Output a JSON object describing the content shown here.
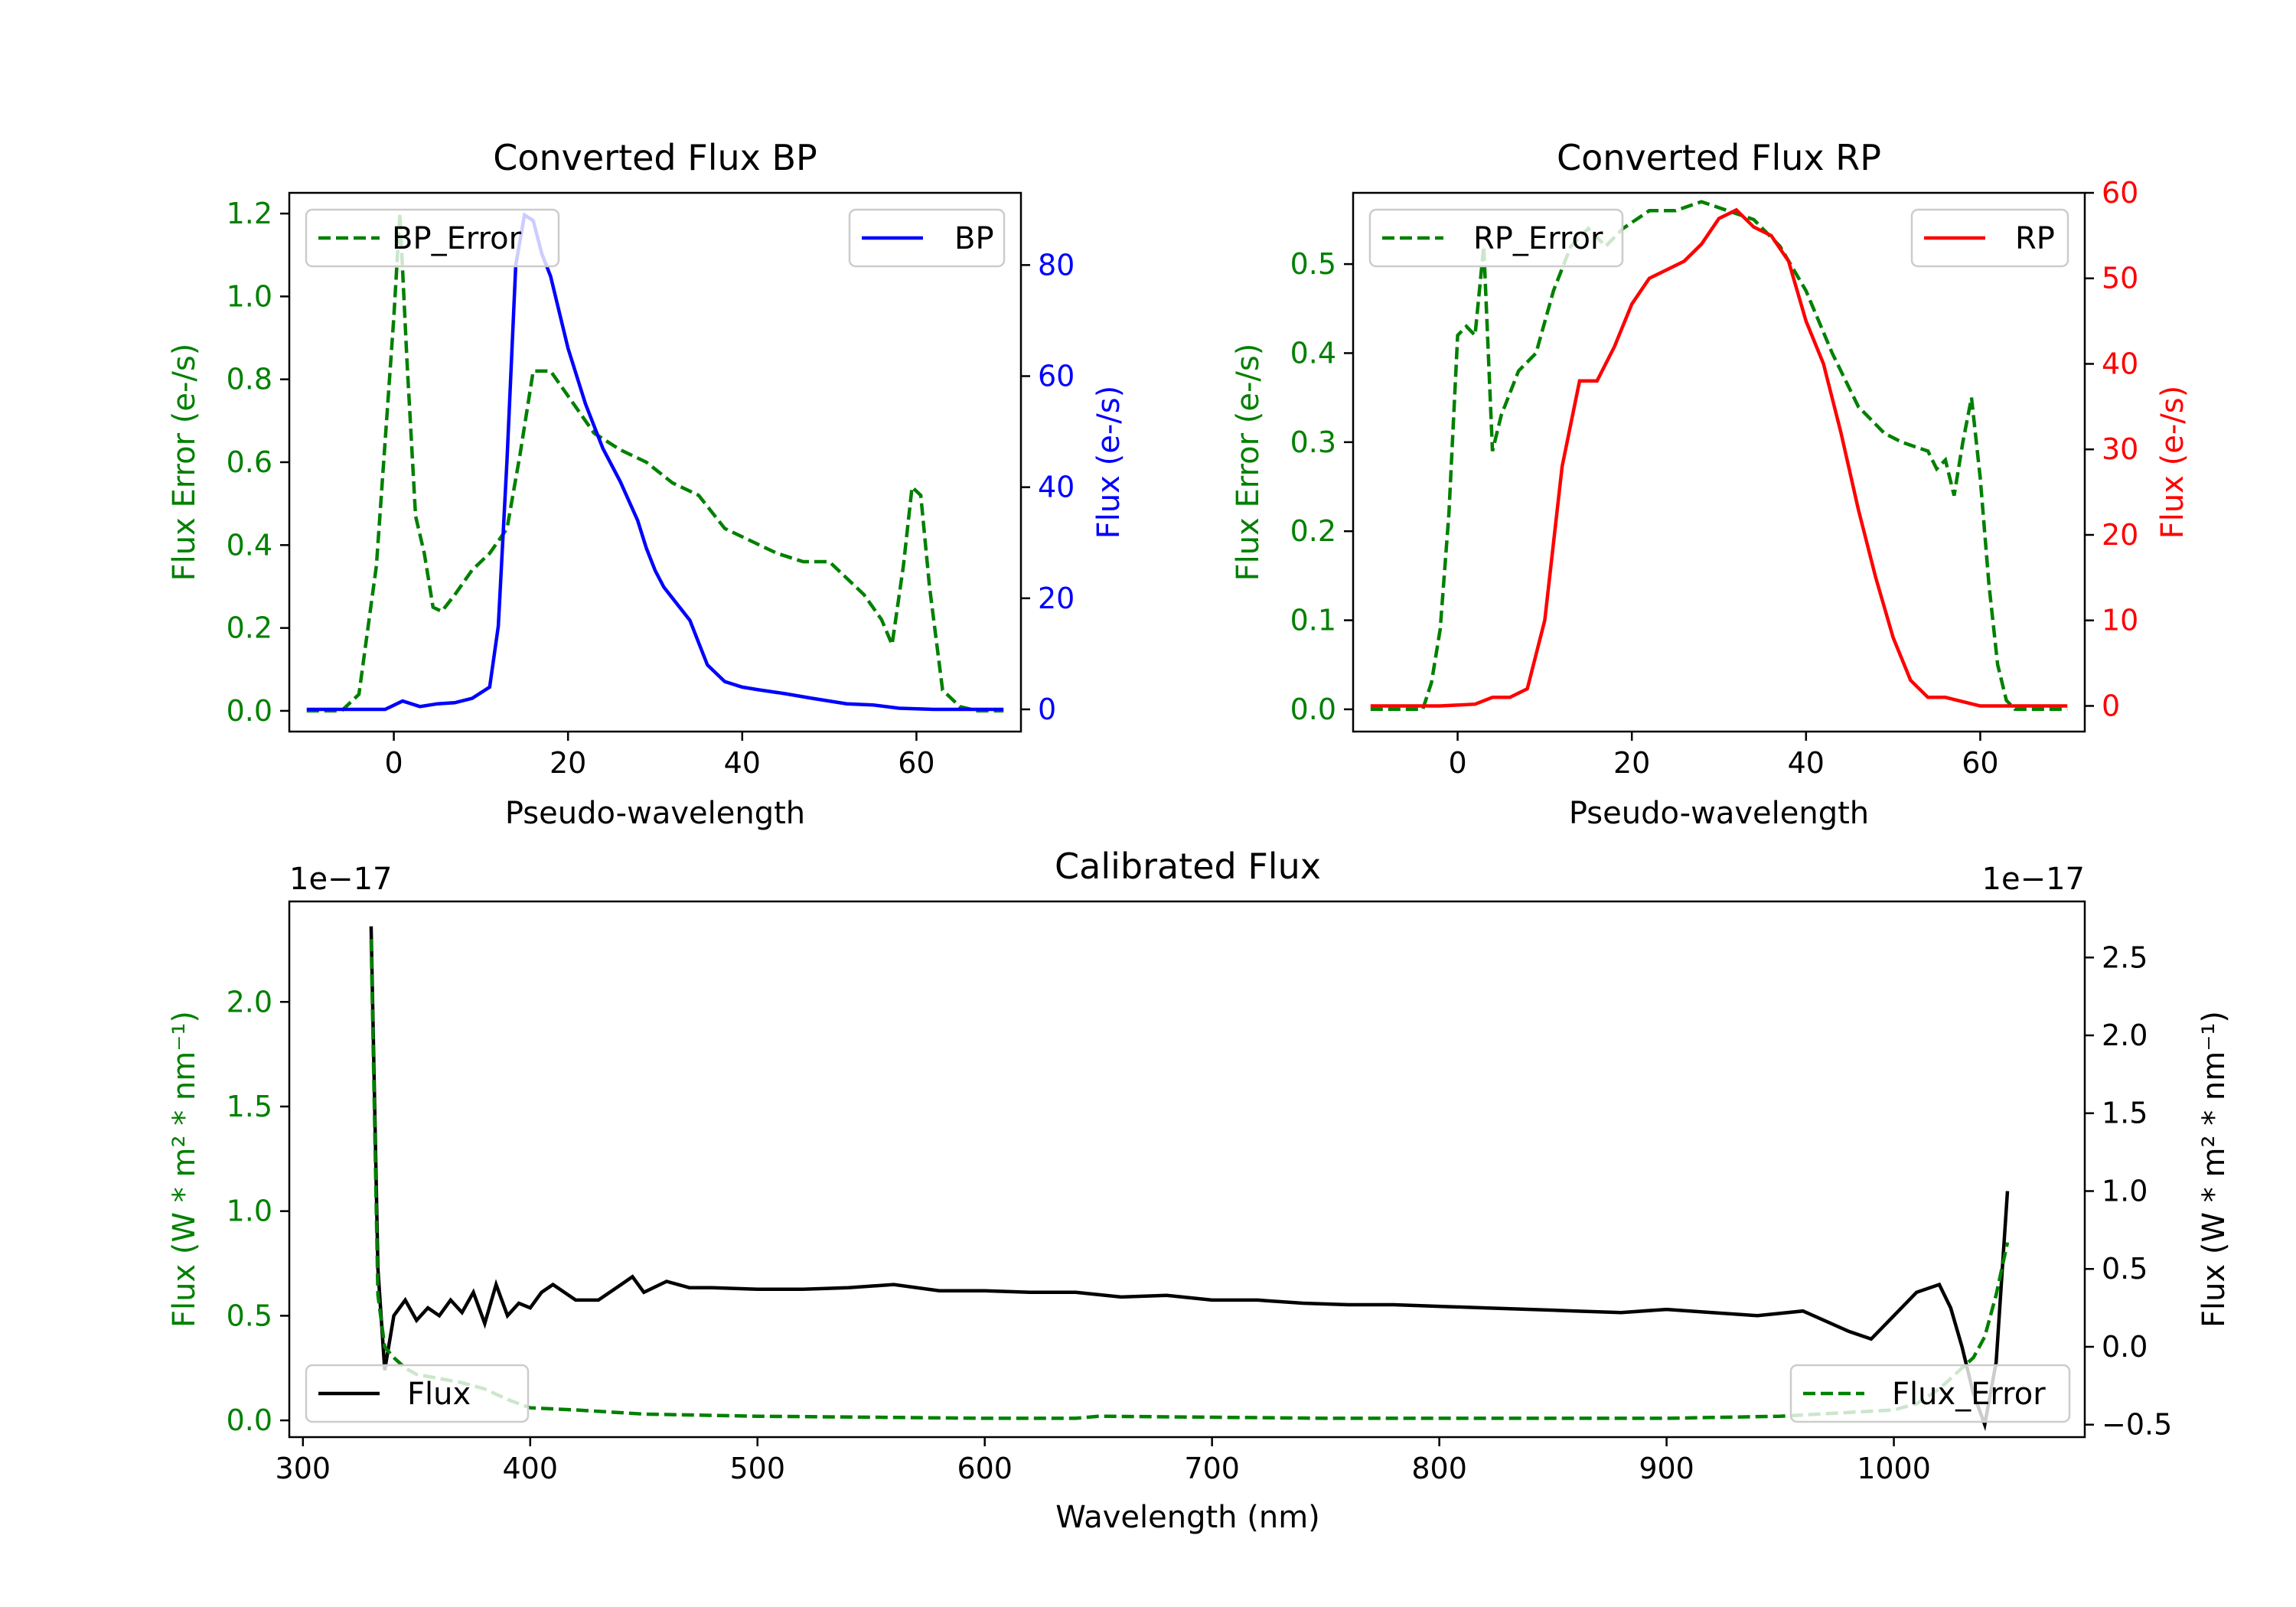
{
  "chart_data": [
    {
      "type": "line",
      "title": "Converted Flux BP",
      "xlabel": "Pseudo-wavelength",
      "ylabel_left": "Flux Error (e-/s)",
      "ylabel_right": "Flux (e-/s)",
      "xlim": [
        -12,
        72
      ],
      "ylim_left": [
        -0.05,
        1.25
      ],
      "ylim_right": [
        -4,
        93
      ],
      "xticks": [
        0,
        20,
        40,
        60
      ],
      "yticks_left": [
        0.0,
        0.2,
        0.4,
        0.6,
        0.8,
        1.0,
        1.2
      ],
      "yticks_right": [
        0,
        20,
        40,
        60,
        80
      ],
      "series": [
        {
          "name": "BP_Error",
          "axis": "left",
          "style": "dashed",
          "color": "#008000",
          "x": [
            -10,
            -6,
            -4,
            -2,
            0,
            0.7,
            1.5,
            2.5,
            3.5,
            4.5,
            5.5,
            7,
            9,
            11,
            13,
            14.5,
            16,
            18,
            20,
            23,
            26,
            29,
            32,
            35,
            38,
            41,
            44,
            47,
            50,
            52,
            54,
            56,
            57.2,
            58.5,
            59.5,
            60.5,
            61.5,
            63,
            65,
            67,
            70
          ],
          "y": [
            0.0,
            0.0,
            0.04,
            0.35,
            0.95,
            1.2,
            0.85,
            0.47,
            0.38,
            0.25,
            0.24,
            0.28,
            0.34,
            0.38,
            0.44,
            0.62,
            0.82,
            0.82,
            0.76,
            0.67,
            0.63,
            0.6,
            0.55,
            0.52,
            0.44,
            0.41,
            0.38,
            0.36,
            0.36,
            0.32,
            0.28,
            0.22,
            0.16,
            0.35,
            0.54,
            0.52,
            0.3,
            0.05,
            0.01,
            0.0,
            0.0
          ]
        },
        {
          "name": "BP",
          "axis": "right",
          "style": "solid",
          "color": "#0000ff",
          "x": [
            -10,
            -4,
            -1,
            1,
            3,
            5,
            7,
            9,
            11,
            12,
            13,
            14,
            15,
            16,
            17,
            18,
            20,
            22,
            24,
            26,
            28,
            29,
            30,
            31,
            32,
            34,
            35,
            36,
            38,
            40,
            42,
            45,
            48,
            50,
            52,
            55,
            58,
            62,
            66,
            70
          ],
          "y": [
            0,
            0,
            0,
            1.5,
            0.5,
            1,
            1.2,
            2,
            4,
            15,
            45,
            80,
            89,
            88,
            82,
            78,
            65,
            55,
            47,
            41,
            34,
            29,
            25,
            22,
            20,
            16,
            12,
            8,
            5,
            4,
            3.5,
            2.8,
            2,
            1.5,
            1,
            0.8,
            0.2,
            0,
            0,
            0
          ]
        }
      ],
      "legend": [
        {
          "label": "BP_Error",
          "placement": "upper-left"
        },
        {
          "label": "BP",
          "placement": "upper-right"
        }
      ]
    },
    {
      "type": "line",
      "title": "Converted Flux RP",
      "xlabel": "Pseudo-wavelength",
      "ylabel_left": "Flux Error (e-/s)",
      "ylabel_right": "Flux (e-/s)",
      "xlim": [
        -12,
        72
      ],
      "ylim_left": [
        -0.025,
        0.58
      ],
      "ylim_right": [
        -3,
        60
      ],
      "xticks": [
        0,
        20,
        40,
        60
      ],
      "yticks_left": [
        0.0,
        0.1,
        0.2,
        0.3,
        0.4,
        0.5
      ],
      "yticks_right": [
        0,
        10,
        20,
        30,
        40,
        50,
        60
      ],
      "series": [
        {
          "name": "RP_Error",
          "axis": "left",
          "style": "dashed",
          "color": "#008000",
          "x": [
            -10,
            -4,
            -3,
            -2,
            -1,
            0,
            1,
            2,
            3,
            4,
            5,
            7,
            9,
            11,
            13,
            15,
            17,
            19,
            22,
            25,
            28,
            31,
            34,
            37,
            40,
            43,
            46,
            49,
            51,
            54,
            55,
            56,
            57,
            58,
            59,
            60,
            61,
            62,
            63,
            64,
            70
          ],
          "y": [
            0.0,
            0.0,
            0.03,
            0.09,
            0.22,
            0.42,
            0.43,
            0.42,
            0.52,
            0.29,
            0.33,
            0.38,
            0.4,
            0.47,
            0.52,
            0.54,
            0.52,
            0.54,
            0.56,
            0.56,
            0.57,
            0.56,
            0.55,
            0.52,
            0.47,
            0.4,
            0.34,
            0.31,
            0.3,
            0.29,
            0.27,
            0.28,
            0.24,
            0.3,
            0.35,
            0.26,
            0.14,
            0.05,
            0.01,
            0.0,
            0.0
          ]
        },
        {
          "name": "RP",
          "axis": "right",
          "style": "solid",
          "color": "#ff0000",
          "x": [
            -10,
            -2,
            2,
            4,
            6,
            8,
            10,
            12,
            14,
            16,
            18,
            20,
            22,
            24,
            26,
            28,
            30,
            32,
            34,
            36,
            38,
            40,
            42,
            44,
            46,
            48,
            50,
            52,
            54,
            56,
            58,
            60,
            62,
            66,
            70
          ],
          "y": [
            0,
            0,
            0.2,
            1,
            1,
            2,
            10,
            28,
            38,
            38,
            42,
            47,
            50,
            51,
            52,
            54,
            57,
            58,
            56,
            55,
            52,
            45,
            40,
            32,
            23,
            15,
            8,
            3,
            1,
            1,
            0.5,
            0,
            0,
            0,
            0
          ]
        }
      ],
      "legend": [
        {
          "label": "RP_Error",
          "placement": "upper-left"
        },
        {
          "label": "RP",
          "placement": "upper-right"
        }
      ]
    },
    {
      "type": "line",
      "title": "Calibrated Flux",
      "xlabel": "Wavelength (nm)",
      "ylabel_left": "Flux (W * m² * nm⁻¹)",
      "ylabel_right": "Flux (W * m² * nm⁻¹)",
      "offset_left": "1e−17",
      "offset_right": "1e−17",
      "xlim": [
        294,
        1084
      ],
      "ylim_left": [
        -0.08,
        2.48
      ],
      "ylim_right": [
        -0.58,
        2.86
      ],
      "xticks": [
        300,
        400,
        500,
        600,
        700,
        800,
        900,
        1000
      ],
      "yticks_left": [
        "0.0",
        "0.5",
        "1.0",
        "1.5",
        "2.0"
      ],
      "yticks_right": [
        "−0.5",
        "0.0",
        "0.5",
        "1.0",
        "1.5",
        "2.0",
        "2.5"
      ],
      "series": [
        {
          "name": "Flux",
          "axis": "right",
          "style": "solid",
          "color": "#000000",
          "x": [
            330,
            333,
            336,
            340,
            345,
            350,
            355,
            360,
            365,
            370,
            375,
            380,
            385,
            390,
            395,
            400,
            405,
            410,
            420,
            430,
            440,
            445,
            450,
            460,
            470,
            480,
            500,
            520,
            540,
            560,
            580,
            600,
            620,
            640,
            660,
            680,
            700,
            720,
            740,
            760,
            780,
            800,
            820,
            840,
            860,
            880,
            900,
            920,
            940,
            960,
            980,
            990,
            1000,
            1010,
            1020,
            1025,
            1030,
            1035,
            1040,
            1045,
            1050
          ],
          "y": [
            2.7,
            0.5,
            -0.15,
            0.2,
            0.3,
            0.17,
            0.25,
            0.2,
            0.3,
            0.22,
            0.35,
            0.15,
            0.4,
            0.2,
            0.28,
            0.25,
            0.35,
            0.4,
            0.3,
            0.3,
            0.4,
            0.45,
            0.35,
            0.42,
            0.38,
            0.38,
            0.37,
            0.37,
            0.38,
            0.4,
            0.36,
            0.36,
            0.35,
            0.35,
            0.32,
            0.33,
            0.3,
            0.3,
            0.28,
            0.27,
            0.27,
            0.26,
            0.25,
            0.24,
            0.23,
            0.22,
            0.24,
            0.22,
            0.2,
            0.23,
            0.1,
            0.05,
            0.2,
            0.35,
            0.4,
            0.25,
            0.0,
            -0.3,
            -0.5,
            -0.1,
            1.0
          ]
        },
        {
          "name": "Flux_Error",
          "axis": "left",
          "style": "dashed",
          "color": "#008000",
          "x": [
            330,
            333,
            336,
            340,
            345,
            350,
            360,
            370,
            380,
            390,
            400,
            420,
            450,
            500,
            550,
            600,
            640,
            650,
            700,
            750,
            800,
            850,
            900,
            950,
            1000,
            1010,
            1020,
            1030,
            1035,
            1040,
            1045,
            1050
          ],
          "y": [
            2.3,
            0.6,
            0.35,
            0.3,
            0.25,
            0.22,
            0.2,
            0.18,
            0.15,
            0.1,
            0.06,
            0.05,
            0.03,
            0.02,
            0.015,
            0.01,
            0.01,
            0.02,
            0.015,
            0.01,
            0.01,
            0.01,
            0.01,
            0.02,
            0.05,
            0.08,
            0.15,
            0.25,
            0.3,
            0.4,
            0.6,
            0.85
          ]
        }
      ],
      "legend": [
        {
          "label": "Flux",
          "placement": "lower-left"
        },
        {
          "label": "Flux_Error",
          "placement": "lower-right"
        }
      ]
    }
  ]
}
